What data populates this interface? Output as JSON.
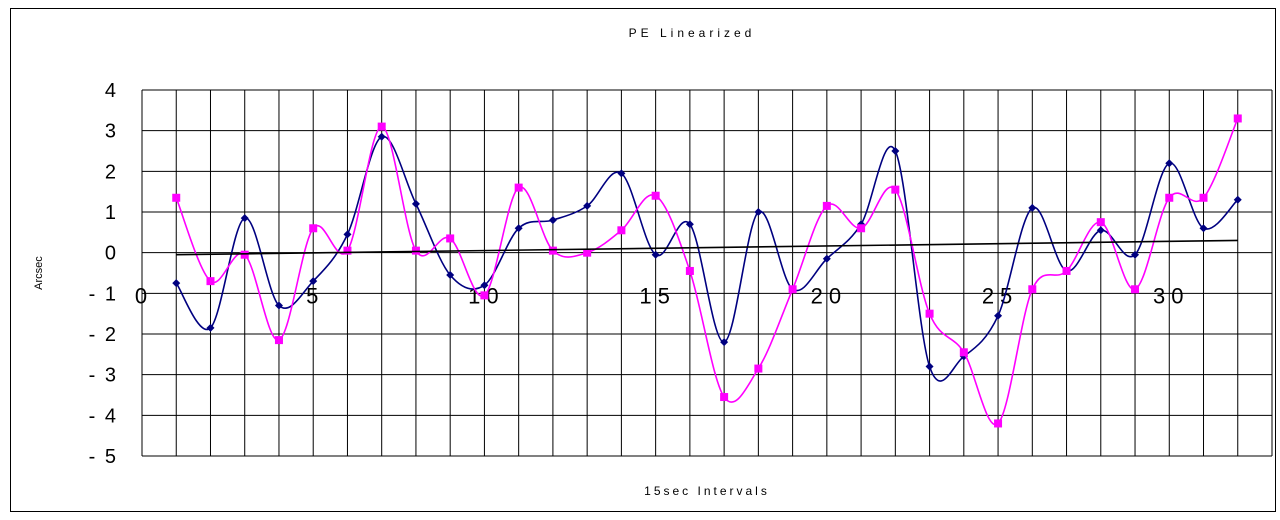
{
  "chart_data": {
    "type": "line",
    "title": "PE Linearized",
    "xlabel": "15sec Intervals",
    "ylabel": "Arcsec",
    "xlim": [
      0,
      33
    ],
    "ylim": [
      -5,
      4
    ],
    "x_ticks": [
      0,
      5,
      10,
      15,
      20,
      25,
      30
    ],
    "y_ticks": [
      4,
      3,
      2,
      1,
      0,
      -1,
      -2,
      -3,
      -4,
      -5
    ],
    "grid": true,
    "legend": "none",
    "x": [
      1,
      2,
      3,
      4,
      5,
      6,
      7,
      8,
      9,
      10,
      11,
      12,
      13,
      14,
      15,
      16,
      17,
      18,
      19,
      20,
      21,
      22,
      23,
      24,
      25,
      26,
      27,
      28,
      29,
      30,
      31,
      32
    ],
    "series": [
      {
        "color": "#000080",
        "marker": "diamond",
        "values": [
          -0.75,
          -1.85,
          0.85,
          -1.3,
          -0.7,
          0.45,
          2.85,
          1.2,
          -0.55,
          -0.8,
          0.6,
          0.8,
          1.15,
          1.95,
          -0.05,
          0.7,
          -2.2,
          1.0,
          -0.9,
          -0.15,
          0.7,
          2.5,
          -2.8,
          -2.55,
          -1.55,
          1.1,
          -0.45,
          0.55,
          -0.05,
          2.2,
          0.6,
          1.3
        ]
      },
      {
        "color": "#FF00FF",
        "marker": "square",
        "values": [
          1.35,
          -0.7,
          -0.05,
          -2.15,
          0.6,
          0.05,
          3.1,
          0.05,
          0.35,
          -1.05,
          1.6,
          0.05,
          0.0,
          0.55,
          1.4,
          -0.45,
          -3.55,
          -2.85,
          -0.9,
          1.15,
          0.6,
          1.55,
          -1.5,
          -2.45,
          -4.2,
          -0.9,
          -0.45,
          0.75,
          -0.9,
          1.35,
          1.35,
          3.3
        ]
      },
      {
        "color": "#000000",
        "marker": "none",
        "trend": true,
        "values": [
          -0.05,
          0.3
        ],
        "x": [
          1,
          32
        ]
      }
    ]
  }
}
